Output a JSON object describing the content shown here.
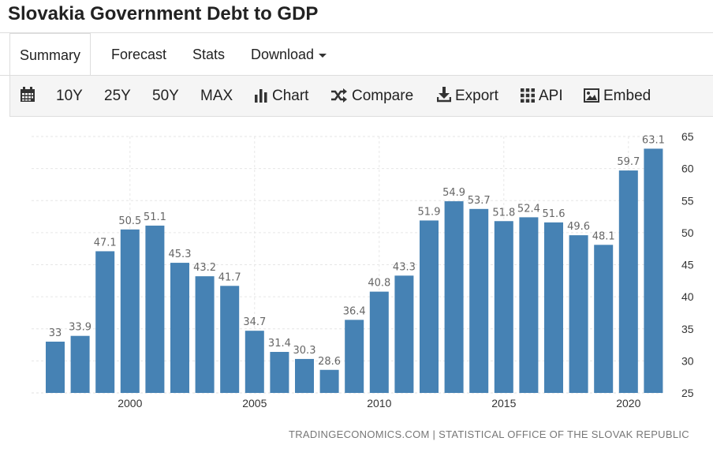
{
  "header": {
    "title": "Slovakia Government Debt to GDP"
  },
  "tabs": [
    {
      "label": "Summary",
      "active": true
    },
    {
      "label": "Forecast"
    },
    {
      "label": "Stats"
    },
    {
      "label": "Download",
      "icon": "caret-down-icon"
    }
  ],
  "toolbar": {
    "calendar_icon": "calendar-icon",
    "range_10y": "10Y",
    "range_25y": "25Y",
    "range_50y": "50Y",
    "range_max": "MAX",
    "chart_label": "Chart",
    "compare_label": "Compare",
    "export_label": "Export",
    "api_label": "API",
    "embed_label": "Embed"
  },
  "source": "TRADINGECONOMICS.COM | STATISTICAL OFFICE OF THE SLOVAK REPUBLIC",
  "colors": {
    "bar": "#4682b4",
    "grid": "#e6e6e6",
    "label": "#666666"
  },
  "chart_data": {
    "type": "bar",
    "title": "",
    "xlabel": "",
    "ylabel": "",
    "x": [
      1997,
      1998,
      1999,
      2000,
      2001,
      2002,
      2003,
      2004,
      2005,
      2006,
      2007,
      2008,
      2009,
      2010,
      2011,
      2012,
      2013,
      2014,
      2015,
      2016,
      2017,
      2018,
      2019,
      2020,
      2021
    ],
    "values": [
      33,
      33.9,
      47.1,
      50.5,
      51.1,
      45.3,
      43.2,
      41.7,
      34.7,
      31.4,
      30.3,
      28.6,
      36.4,
      40.8,
      43.3,
      51.9,
      54.9,
      53.7,
      51.8,
      52.4,
      51.6,
      49.6,
      48.1,
      59.7,
      63.1
    ],
    "data_labels": [
      "33",
      "33.9",
      "47.1",
      "50.5",
      "51.1",
      "45.3",
      "43.2",
      "41.7",
      "34.7",
      "31.4",
      "30.3",
      "28.6",
      "36.4",
      "40.8",
      "43.3",
      "51.9",
      "54.9",
      "53.7",
      "51.8",
      "52.4",
      "51.6",
      "49.6",
      "48.1",
      "59.7",
      "63.1"
    ],
    "x_ticks": [
      2000,
      2005,
      2010,
      2015,
      2020
    ],
    "x_tick_labels": [
      "2000",
      "2005",
      "2010",
      "2015",
      "2020"
    ],
    "y_ticks": [
      25,
      30,
      35,
      40,
      45,
      50,
      55,
      60,
      65
    ],
    "y_tick_labels": [
      "25",
      "30",
      "35",
      "40",
      "45",
      "50",
      "55",
      "60",
      "65"
    ],
    "ylim": [
      25,
      65
    ],
    "y_axis_side": "right",
    "grid": true,
    "legend": "none"
  }
}
